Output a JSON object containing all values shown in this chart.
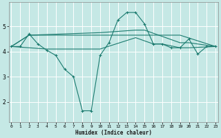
{
  "xlabel": "Humidex (Indice chaleur)",
  "bg_color": "#c5e8e5",
  "grid_color": "#ffffff",
  "line_color": "#1a7a6e",
  "series_main": {
    "x": [
      0,
      1,
      2,
      3,
      4,
      5,
      6,
      7,
      8,
      9,
      10,
      11,
      12,
      13,
      14,
      15,
      16,
      17,
      18,
      19,
      20,
      21,
      22,
      23
    ],
    "y": [
      4.2,
      4.2,
      4.7,
      4.3,
      4.05,
      3.85,
      3.3,
      3.0,
      1.65,
      1.65,
      3.85,
      4.35,
      5.25,
      5.55,
      5.55,
      5.1,
      4.3,
      4.3,
      4.15,
      4.15,
      4.5,
      3.9,
      4.2,
      4.2
    ]
  },
  "series_flat": [
    {
      "x": [
        0,
        2,
        9,
        10,
        19,
        23
      ],
      "y": [
        4.2,
        4.65,
        4.65,
        4.65,
        4.65,
        4.2
      ]
    },
    {
      "x": [
        0,
        2,
        10,
        14,
        15,
        19,
        20,
        23
      ],
      "y": [
        4.2,
        4.65,
        4.75,
        4.85,
        4.85,
        4.35,
        4.35,
        4.2
      ]
    },
    {
      "x": [
        0,
        4,
        10,
        14,
        16,
        17,
        19,
        20,
        23
      ],
      "y": [
        4.2,
        4.1,
        4.1,
        4.55,
        4.3,
        4.3,
        4.15,
        4.15,
        4.2
      ]
    }
  ],
  "xlim": [
    -0.3,
    23.3
  ],
  "ylim": [
    1.2,
    5.95
  ],
  "yticks": [
    2,
    3,
    4,
    5
  ],
  "xticks": [
    0,
    1,
    2,
    3,
    4,
    5,
    6,
    7,
    8,
    9,
    10,
    11,
    12,
    13,
    14,
    15,
    16,
    17,
    18,
    19,
    20,
    21,
    22,
    23
  ],
  "xtick_labels": [
    "0",
    "1",
    "2",
    "3",
    "4",
    "5",
    "6",
    "7",
    "8",
    "9",
    "10",
    "11",
    "12",
    "13",
    "14",
    "15",
    "16",
    "17",
    "18",
    "19",
    "20",
    "21",
    "22",
    "23"
  ],
  "figsize": [
    3.2,
    2.0
  ],
  "dpi": 100
}
